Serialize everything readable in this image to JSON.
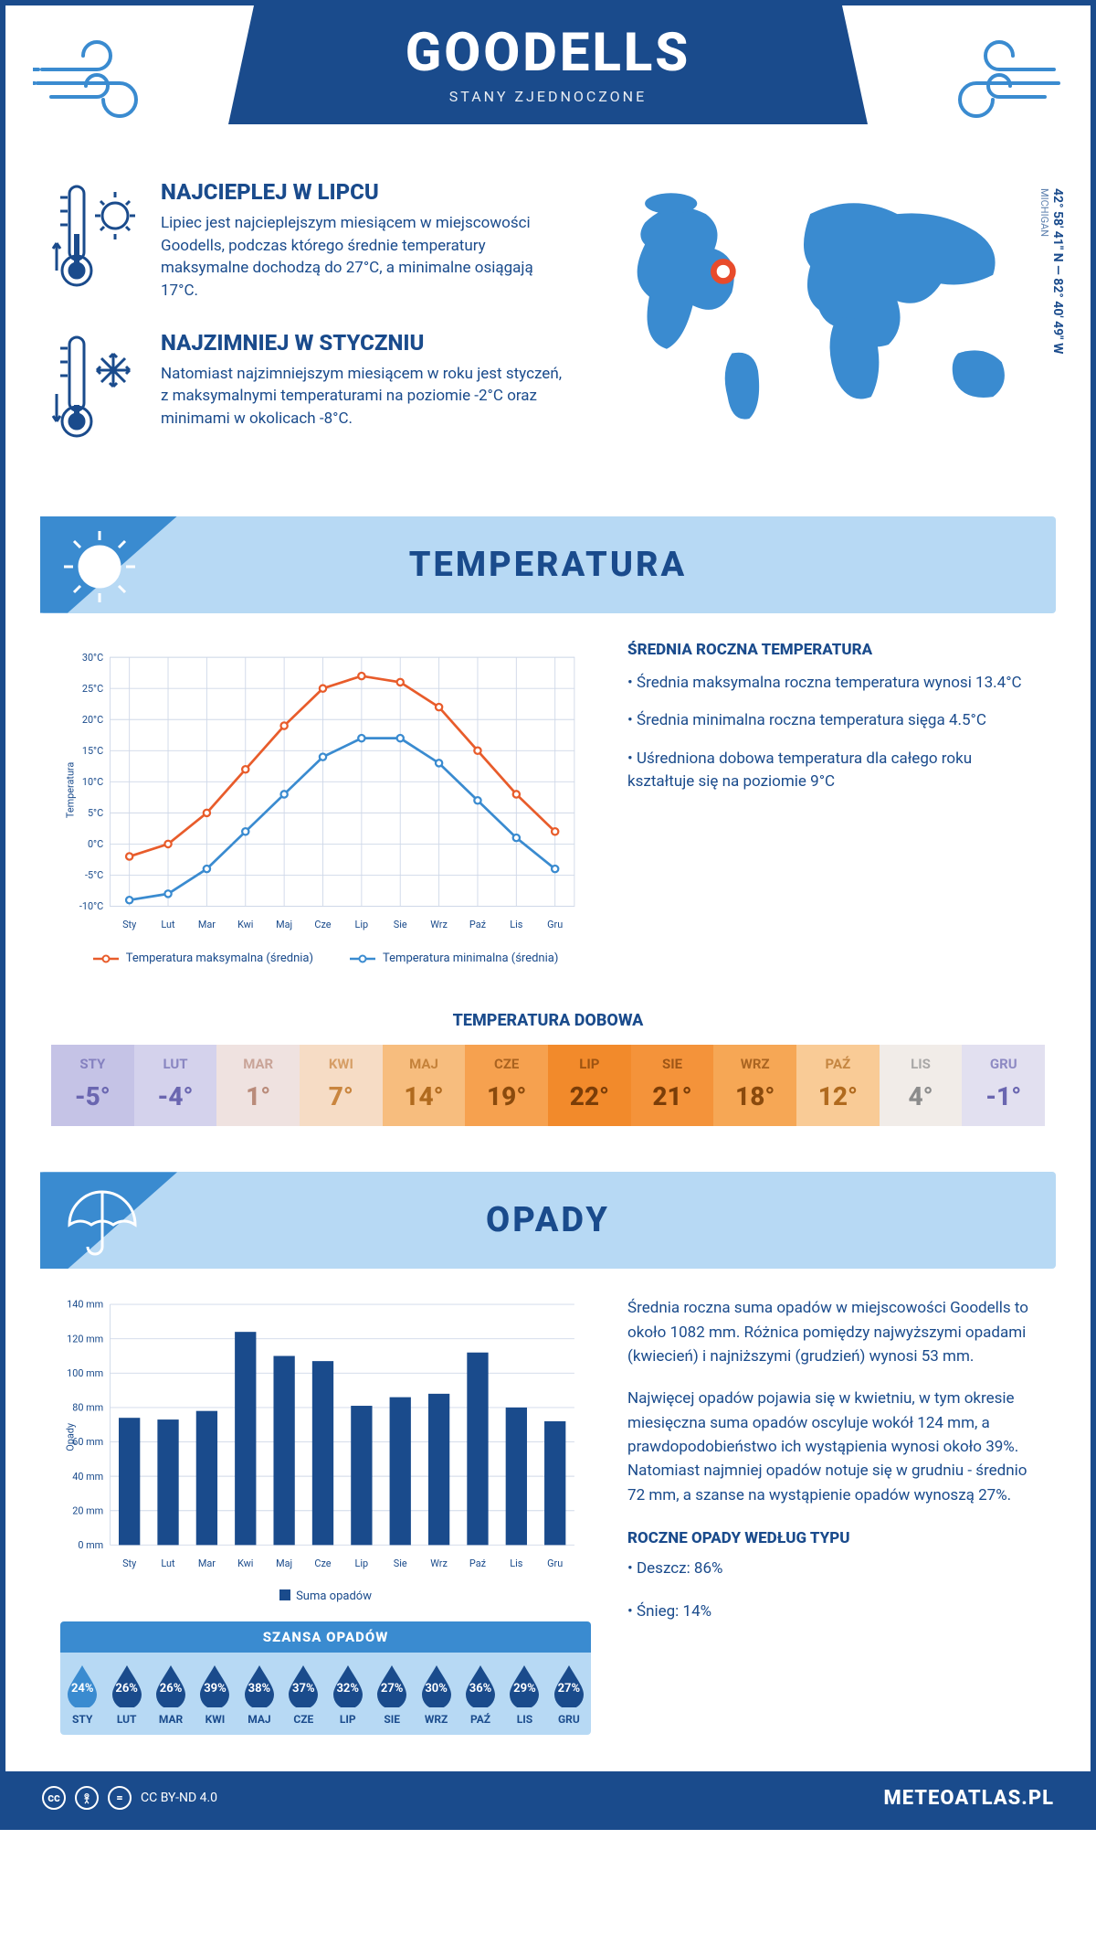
{
  "header": {
    "title": "GOODELLS",
    "subtitle": "STANY ZJEDNOCZONE"
  },
  "location": {
    "coords": "42° 58' 41\" N — 82° 40' 49\" W",
    "region": "MICHIGAN",
    "marker": {
      "cx_pct": 26,
      "cy_pct": 38
    }
  },
  "facts": {
    "warm": {
      "title": "NAJCIEPLEJ W LIPCU",
      "text": "Lipiec jest najcieplejszym miesiącem w miejscowości Goodells, podczas którego średnie temperatury maksymalne dochodzą do 27°C, a minimalne osiągają 17°C."
    },
    "cold": {
      "title": "NAJZIMNIEJ W STYCZNIU",
      "text": "Natomiast najzimniejszym miesiącem w roku jest styczeń, z maksymalnymi temperaturami na poziomie -2°C oraz minimami w okolicach -8°C."
    }
  },
  "months_short": [
    "Sty",
    "Lut",
    "Mar",
    "Kwi",
    "Maj",
    "Cze",
    "Lip",
    "Sie",
    "Wrz",
    "Paź",
    "Lis",
    "Gru"
  ],
  "months_upper": [
    "STY",
    "LUT",
    "MAR",
    "KWI",
    "MAJ",
    "CZE",
    "LIP",
    "SIE",
    "WRZ",
    "PAŹ",
    "LIS",
    "GRU"
  ],
  "temperature": {
    "section_title": "TEMPERATURA",
    "line_chart": {
      "y_label": "Temperatura",
      "ylim": [
        -10,
        30
      ],
      "ytick_step": 5,
      "grid_color": "#cfd8e8",
      "axis_color": "#1a4b8c",
      "series": [
        {
          "name": "Temperatura maksymalna (średnia)",
          "color": "#e85c2b",
          "values": [
            -2,
            0,
            5,
            12,
            19,
            25,
            27,
            26,
            22,
            15,
            8,
            2
          ]
        },
        {
          "name": "Temperatura minimalna (średnia)",
          "color": "#3a8bd0",
          "values": [
            -9,
            -8,
            -4,
            2,
            8,
            14,
            17,
            17,
            13,
            7,
            1,
            -4
          ]
        }
      ]
    },
    "summary": {
      "title": "ŚREDNIA ROCZNA TEMPERATURA",
      "bullets": [
        "• Średnia maksymalna roczna temperatura wynosi 13.4°C",
        "• Średnia minimalna roczna temperatura sięga 4.5°C",
        "• Uśredniona dobowa temperatura dla całego roku kształtuje się na poziomie 9°C"
      ]
    },
    "daily": {
      "title": "TEMPERATURA DOBOWA",
      "values": [
        "-5°",
        "-4°",
        "1°",
        "7°",
        "14°",
        "19°",
        "22°",
        "21°",
        "18°",
        "12°",
        "4°",
        "-1°"
      ],
      "cell_bg": [
        "#c5c3e6",
        "#d4d2ec",
        "#efe2e0",
        "#f6dcc5",
        "#f7bd7e",
        "#f6a14f",
        "#f28a2b",
        "#f4933a",
        "#f6a755",
        "#f9cb96",
        "#f1ece8",
        "#e2e0f0"
      ],
      "cell_fg": [
        "#6a66b0",
        "#6a66b0",
        "#b98b7a",
        "#c9853e",
        "#b06a1e",
        "#8a4a0d",
        "#7a3d08",
        "#7a3d08",
        "#8a4a0d",
        "#b06a1e",
        "#8c8c8c",
        "#6a66b0"
      ]
    }
  },
  "precip": {
    "section_title": "OPADY",
    "bar_chart": {
      "y_label": "Opady",
      "ylim": [
        0,
        140
      ],
      "ytick_step": 20,
      "bar_color": "#1a4b8c",
      "grid_color": "#cfd8e8",
      "unit": "mm",
      "values": [
        74,
        73,
        78,
        124,
        110,
        107,
        81,
        86,
        88,
        112,
        80,
        72
      ],
      "legend_label": "Suma opadów"
    },
    "text": {
      "p1": "Średnia roczna suma opadów w miejscowości Goodells to około 1082 mm. Różnica pomiędzy najwyższymi opadami (kwiecień) i najniższymi (grudzień) wynosi 53 mm.",
      "p2": "Najwięcej opadów pojawia się w kwietniu, w tym okresie miesięczna suma opadów oscyluje wokół 124 mm, a prawdopodobieństwo ich wystąpienia wynosi około 39%. Natomiast najmniej opadów notuje się w grudniu - średnio 72 mm, a szanse na wystąpienie opadów wynoszą 27%."
    },
    "chance": {
      "title": "SZANSA OPADÓW",
      "values": [
        "24%",
        "26%",
        "26%",
        "39%",
        "38%",
        "37%",
        "32%",
        "27%",
        "30%",
        "36%",
        "29%",
        "27%"
      ],
      "drop_colors": [
        "#3a8bd0",
        "#1a4b8c",
        "#1a4b8c",
        "#1a4b8c",
        "#1a4b8c",
        "#1a4b8c",
        "#1a4b8c",
        "#1a4b8c",
        "#1a4b8c",
        "#1a4b8c",
        "#1a4b8c",
        "#1a4b8c"
      ]
    },
    "by_type": {
      "title": "ROCZNE OPADY WEDŁUG TYPU",
      "items": [
        "• Deszcz: 86%",
        "• Śnieg: 14%"
      ]
    }
  },
  "footer": {
    "license": "CC BY-ND 4.0",
    "brand": "METEOATLAS.PL"
  },
  "colors": {
    "primary": "#1a4b8c",
    "accent": "#3a8bd0",
    "light": "#b7d9f4",
    "orange": "#e85c2b"
  }
}
